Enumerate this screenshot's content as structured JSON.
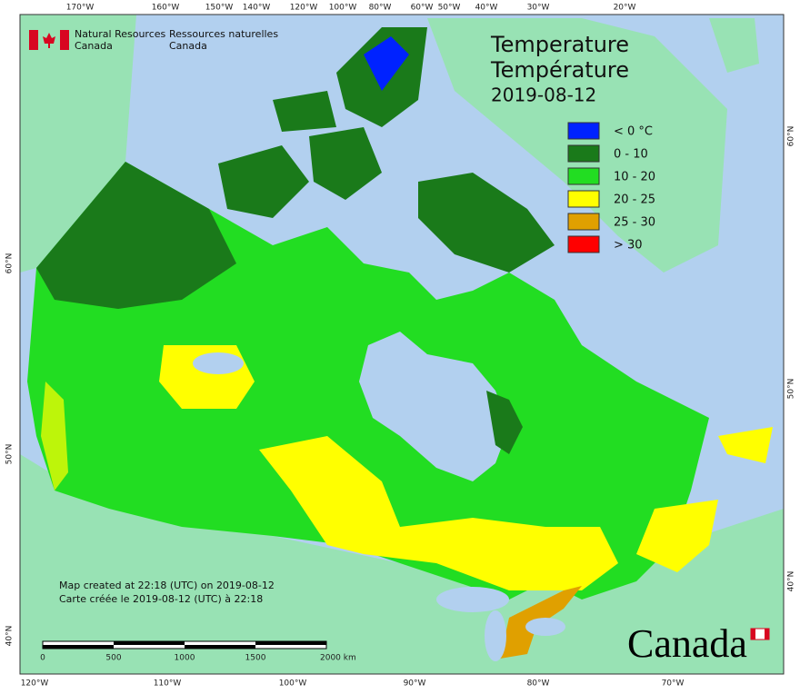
{
  "header": {
    "agency_en": [
      "Natural Resources",
      "Canada"
    ],
    "agency_fr": [
      "Ressources naturelles",
      "Canada"
    ]
  },
  "title": [
    "Temperature",
    "Température",
    "2019-08-12"
  ],
  "legend": [
    {
      "label": "< 0 °C",
      "color": "#0022ff"
    },
    {
      "label": "0 - 10",
      "color": "#1a7a1a"
    },
    {
      "label": "10 - 20",
      "color": "#22dd22"
    },
    {
      "label": "20 - 25",
      "color": "#ffff00"
    },
    {
      "label": "25 - 30",
      "color": "#e0a000"
    },
    {
      "label": "> 30",
      "color": "#ff0000"
    }
  ],
  "graticule": {
    "top": [
      "170°W",
      "160°W",
      "150°W",
      "140°W",
      "120°W",
      "100°W",
      "80°W",
      "60°W",
      "50°W",
      "40°W",
      "30°W",
      "20°W"
    ],
    "bottom": [
      "120°W",
      "110°W",
      "100°W",
      "90°W",
      "80°W",
      "70°W"
    ],
    "left": [
      "60°N",
      "50°N",
      "40°N"
    ],
    "right": [
      "60°N",
      "50°N",
      "40°N"
    ]
  },
  "notes": [
    "Map created at 22:18 (UTC) on 2019-08-12",
    "Carte créée le 2019-08-12 (UTC) à 22:18"
  ],
  "scale_bar": [
    "0",
    "500",
    "1000",
    "1500",
    "2000 km"
  ],
  "wordmark": "Canada"
}
